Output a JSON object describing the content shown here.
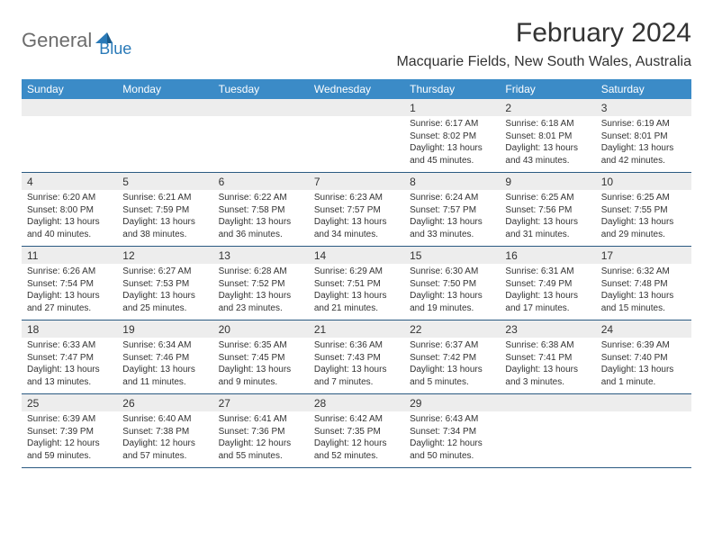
{
  "logo": {
    "general": "General",
    "blue": "Blue"
  },
  "title": "February 2024",
  "location": "Macquarie Fields, New South Wales, Australia",
  "colors": {
    "header_bg": "#3b8bc7",
    "header_text": "#ffffff",
    "daynum_bg": "#ededed",
    "border": "#2b5a82",
    "text": "#333333",
    "logo_gray": "#6c6c6c",
    "logo_blue": "#2a7ab8",
    "background": "#ffffff"
  },
  "typography": {
    "title_fontsize": 30,
    "location_fontsize": 16,
    "dow_fontsize": 12,
    "daynum_fontsize": 12,
    "body_fontsize": 10
  },
  "days_of_week": [
    "Sunday",
    "Monday",
    "Tuesday",
    "Wednesday",
    "Thursday",
    "Friday",
    "Saturday"
  ],
  "weeks": [
    [
      {
        "n": "",
        "sr": "",
        "ss": "",
        "dl": ""
      },
      {
        "n": "",
        "sr": "",
        "ss": "",
        "dl": ""
      },
      {
        "n": "",
        "sr": "",
        "ss": "",
        "dl": ""
      },
      {
        "n": "",
        "sr": "",
        "ss": "",
        "dl": ""
      },
      {
        "n": "1",
        "sr": "Sunrise: 6:17 AM",
        "ss": "Sunset: 8:02 PM",
        "dl": "Daylight: 13 hours and 45 minutes."
      },
      {
        "n": "2",
        "sr": "Sunrise: 6:18 AM",
        "ss": "Sunset: 8:01 PM",
        "dl": "Daylight: 13 hours and 43 minutes."
      },
      {
        "n": "3",
        "sr": "Sunrise: 6:19 AM",
        "ss": "Sunset: 8:01 PM",
        "dl": "Daylight: 13 hours and 42 minutes."
      }
    ],
    [
      {
        "n": "4",
        "sr": "Sunrise: 6:20 AM",
        "ss": "Sunset: 8:00 PM",
        "dl": "Daylight: 13 hours and 40 minutes."
      },
      {
        "n": "5",
        "sr": "Sunrise: 6:21 AM",
        "ss": "Sunset: 7:59 PM",
        "dl": "Daylight: 13 hours and 38 minutes."
      },
      {
        "n": "6",
        "sr": "Sunrise: 6:22 AM",
        "ss": "Sunset: 7:58 PM",
        "dl": "Daylight: 13 hours and 36 minutes."
      },
      {
        "n": "7",
        "sr": "Sunrise: 6:23 AM",
        "ss": "Sunset: 7:57 PM",
        "dl": "Daylight: 13 hours and 34 minutes."
      },
      {
        "n": "8",
        "sr": "Sunrise: 6:24 AM",
        "ss": "Sunset: 7:57 PM",
        "dl": "Daylight: 13 hours and 33 minutes."
      },
      {
        "n": "9",
        "sr": "Sunrise: 6:25 AM",
        "ss": "Sunset: 7:56 PM",
        "dl": "Daylight: 13 hours and 31 minutes."
      },
      {
        "n": "10",
        "sr": "Sunrise: 6:25 AM",
        "ss": "Sunset: 7:55 PM",
        "dl": "Daylight: 13 hours and 29 minutes."
      }
    ],
    [
      {
        "n": "11",
        "sr": "Sunrise: 6:26 AM",
        "ss": "Sunset: 7:54 PM",
        "dl": "Daylight: 13 hours and 27 minutes."
      },
      {
        "n": "12",
        "sr": "Sunrise: 6:27 AM",
        "ss": "Sunset: 7:53 PM",
        "dl": "Daylight: 13 hours and 25 minutes."
      },
      {
        "n": "13",
        "sr": "Sunrise: 6:28 AM",
        "ss": "Sunset: 7:52 PM",
        "dl": "Daylight: 13 hours and 23 minutes."
      },
      {
        "n": "14",
        "sr": "Sunrise: 6:29 AM",
        "ss": "Sunset: 7:51 PM",
        "dl": "Daylight: 13 hours and 21 minutes."
      },
      {
        "n": "15",
        "sr": "Sunrise: 6:30 AM",
        "ss": "Sunset: 7:50 PM",
        "dl": "Daylight: 13 hours and 19 minutes."
      },
      {
        "n": "16",
        "sr": "Sunrise: 6:31 AM",
        "ss": "Sunset: 7:49 PM",
        "dl": "Daylight: 13 hours and 17 minutes."
      },
      {
        "n": "17",
        "sr": "Sunrise: 6:32 AM",
        "ss": "Sunset: 7:48 PM",
        "dl": "Daylight: 13 hours and 15 minutes."
      }
    ],
    [
      {
        "n": "18",
        "sr": "Sunrise: 6:33 AM",
        "ss": "Sunset: 7:47 PM",
        "dl": "Daylight: 13 hours and 13 minutes."
      },
      {
        "n": "19",
        "sr": "Sunrise: 6:34 AM",
        "ss": "Sunset: 7:46 PM",
        "dl": "Daylight: 13 hours and 11 minutes."
      },
      {
        "n": "20",
        "sr": "Sunrise: 6:35 AM",
        "ss": "Sunset: 7:45 PM",
        "dl": "Daylight: 13 hours and 9 minutes."
      },
      {
        "n": "21",
        "sr": "Sunrise: 6:36 AM",
        "ss": "Sunset: 7:43 PM",
        "dl": "Daylight: 13 hours and 7 minutes."
      },
      {
        "n": "22",
        "sr": "Sunrise: 6:37 AM",
        "ss": "Sunset: 7:42 PM",
        "dl": "Daylight: 13 hours and 5 minutes."
      },
      {
        "n": "23",
        "sr": "Sunrise: 6:38 AM",
        "ss": "Sunset: 7:41 PM",
        "dl": "Daylight: 13 hours and 3 minutes."
      },
      {
        "n": "24",
        "sr": "Sunrise: 6:39 AM",
        "ss": "Sunset: 7:40 PM",
        "dl": "Daylight: 13 hours and 1 minute."
      }
    ],
    [
      {
        "n": "25",
        "sr": "Sunrise: 6:39 AM",
        "ss": "Sunset: 7:39 PM",
        "dl": "Daylight: 12 hours and 59 minutes."
      },
      {
        "n": "26",
        "sr": "Sunrise: 6:40 AM",
        "ss": "Sunset: 7:38 PM",
        "dl": "Daylight: 12 hours and 57 minutes."
      },
      {
        "n": "27",
        "sr": "Sunrise: 6:41 AM",
        "ss": "Sunset: 7:36 PM",
        "dl": "Daylight: 12 hours and 55 minutes."
      },
      {
        "n": "28",
        "sr": "Sunrise: 6:42 AM",
        "ss": "Sunset: 7:35 PM",
        "dl": "Daylight: 12 hours and 52 minutes."
      },
      {
        "n": "29",
        "sr": "Sunrise: 6:43 AM",
        "ss": "Sunset: 7:34 PM",
        "dl": "Daylight: 12 hours and 50 minutes."
      },
      {
        "n": "",
        "sr": "",
        "ss": "",
        "dl": ""
      },
      {
        "n": "",
        "sr": "",
        "ss": "",
        "dl": ""
      }
    ]
  ]
}
